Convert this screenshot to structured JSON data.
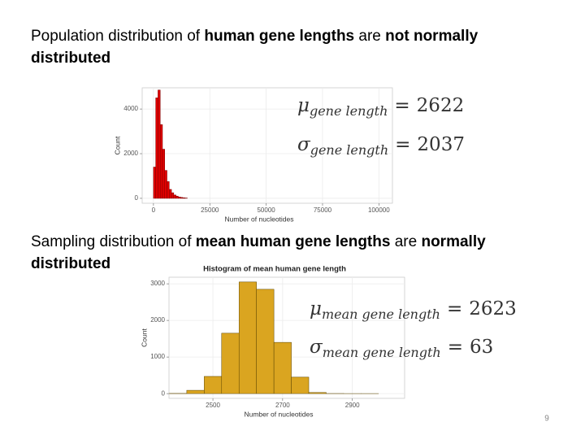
{
  "headings": [
    {
      "lines": [
        [
          {
            "text": "Population distribution of ",
            "bold": false
          },
          {
            "text": "human gene lengths",
            "bold": true
          },
          {
            "text": " are ",
            "bold": false
          },
          {
            "text": "not normally",
            "bold": true
          }
        ],
        [
          {
            "text": "distributed",
            "bold": true
          }
        ]
      ]
    },
    {
      "lines": [
        [
          {
            "text": "Sampling distribution of ",
            "bold": false
          },
          {
            "text": "mean human gene lengths",
            "bold": true
          },
          {
            "text": " are ",
            "bold": false
          },
          {
            "text": "normally",
            "bold": true
          }
        ],
        [
          {
            "text": "distributed",
            "bold": true
          }
        ]
      ]
    }
  ],
  "chart_data": [
    {
      "type": "histogram",
      "x_label": "Number of nucleotides",
      "y_label": "Count",
      "color": "#e00000",
      "edge_color": "#7a0000",
      "bins": [
        0,
        1000,
        2000,
        3000,
        4000,
        5000,
        6000,
        7000,
        8000,
        9000,
        10000,
        11000,
        12000,
        13000,
        14000,
        15000
      ],
      "counts": [
        1400,
        4500,
        4850,
        3300,
        2200,
        1250,
        750,
        400,
        250,
        150,
        100,
        60,
        40,
        25,
        15
      ],
      "xlim": [
        -5000,
        106000
      ],
      "xticks": [
        0,
        25000,
        50000,
        75000,
        100000
      ],
      "ylim": [
        -220,
        4950
      ],
      "yticks": [
        0,
        2000,
        4000
      ],
      "grid": true
    },
    {
      "type": "histogram",
      "title": "Histogram of mean human gene length",
      "x_label": "Number of nucleotides",
      "y_label": "Count",
      "color": "#daa520",
      "edge_color": "#5a4300",
      "bins": [
        2375,
        2425,
        2475,
        2525,
        2575,
        2625,
        2675,
        2725,
        2775,
        2825,
        2875,
        2925,
        2975
      ],
      "counts": [
        5,
        90,
        470,
        1650,
        3050,
        2850,
        1400,
        450,
        30,
        3,
        1,
        1
      ],
      "xlim": [
        2374,
        3050
      ],
      "xticks": [
        2500,
        2700,
        2900
      ],
      "ylim": [
        -130,
        3180
      ],
      "yticks": [
        0,
        1000,
        2000,
        3000
      ],
      "grid": true
    }
  ],
  "formulas": [
    [
      {
        "symbol": "μ",
        "subscript": "gene length",
        "relation": "=",
        "value": 2622
      },
      {
        "symbol": "σ",
        "subscript": "gene length",
        "relation": "=",
        "value": 2037
      }
    ],
    [
      {
        "symbol": "μ",
        "subscript": "mean gene length",
        "relation": "=",
        "value": 2623
      },
      {
        "symbol": "σ",
        "subscript": "mean gene length",
        "relation": "=",
        "value": 63
      }
    ]
  ],
  "page_number": "9"
}
